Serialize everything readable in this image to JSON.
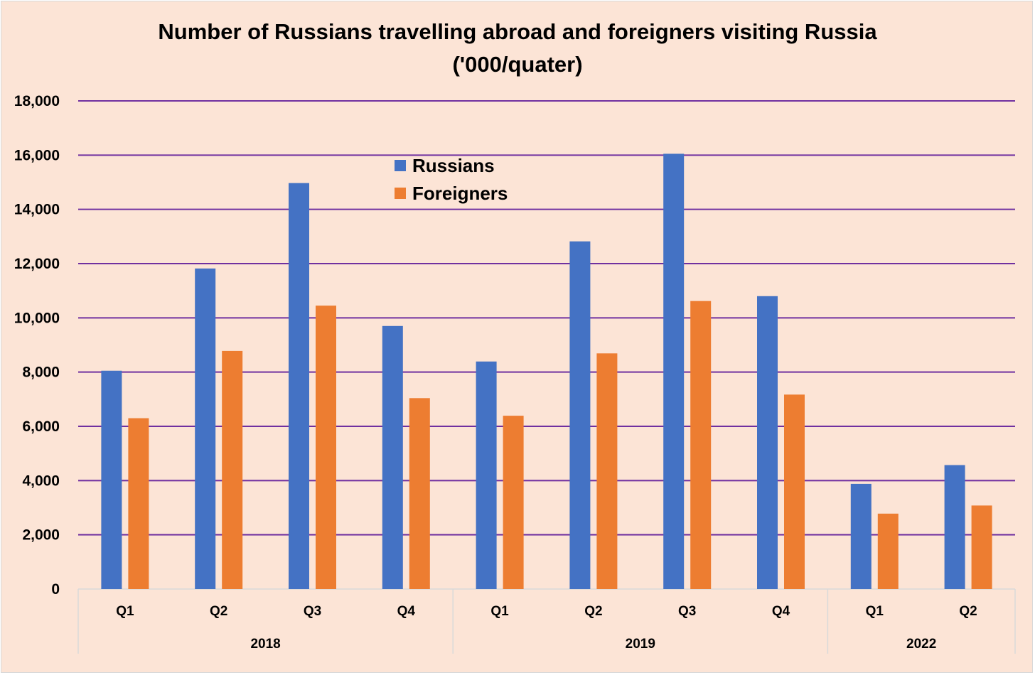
{
  "chart_data": {
    "type": "bar",
    "title": "Number of Russians travelling abroad and foreigners visiting Russia",
    "subtitle": "('000/quater)",
    "xlabel": "",
    "ylabel": "",
    "ylim": [
      0,
      18000
    ],
    "ytick_step": 2000,
    "yticks": [
      "0",
      "2,000",
      "4,000",
      "6,000",
      "8,000",
      "10,000",
      "12,000",
      "14,000",
      "16,000",
      "18,000"
    ],
    "grid": true,
    "legend_position": "top-center",
    "categories": [
      "Q1",
      "Q2",
      "Q3",
      "Q4",
      "Q1",
      "Q2",
      "Q3",
      "Q4",
      "Q1",
      "Q2"
    ],
    "groups": [
      {
        "label": "2018",
        "count": 4
      },
      {
        "label": "2019",
        "count": 4
      },
      {
        "label": "2022",
        "count": 2
      }
    ],
    "series": [
      {
        "name": "Russians",
        "color": "#4472c4",
        "values": [
          8050,
          11820,
          14970,
          9700,
          8390,
          12820,
          16050,
          10800,
          3880,
          4570
        ]
      },
      {
        "name": "Foreigners",
        "color": "#ed7d31",
        "values": [
          6300,
          8780,
          10450,
          7040,
          6390,
          8690,
          10620,
          7170,
          2780,
          3080
        ]
      }
    ],
    "gridline_color": "#7030a0",
    "axis_line_color": "#d9d9d9"
  }
}
